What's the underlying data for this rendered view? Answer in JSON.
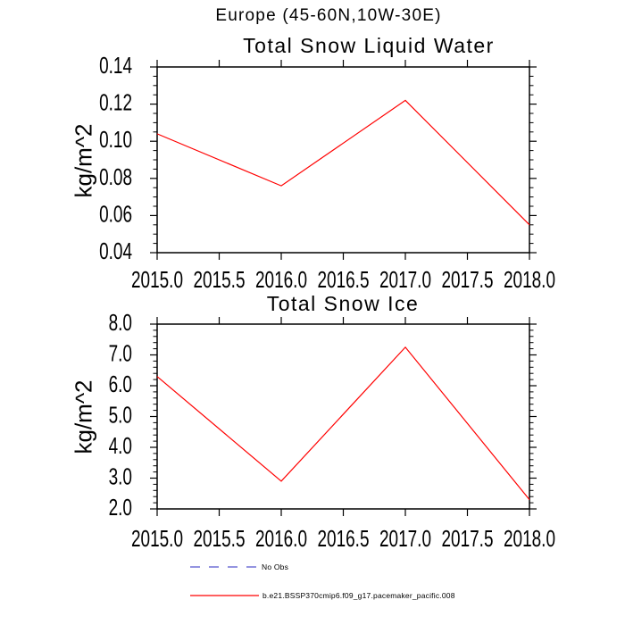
{
  "header": {
    "title": "Europe (45-60N,10W-30E)"
  },
  "chart_data": [
    {
      "type": "line",
      "title": "Total Snow Liquid Water",
      "xlabel": "",
      "ylabel": "kg/m^2",
      "xlim": [
        2015.0,
        2018.0
      ],
      "ylim": [
        0.04,
        0.14
      ],
      "xticks": [
        2015.0,
        2015.5,
        2016.0,
        2016.5,
        2017.0,
        2017.5,
        2018.0
      ],
      "xtick_labels": [
        "2015.0",
        "2015.5",
        "2016.0",
        "2016.5",
        "2017.0",
        "2017.5",
        "2018.0"
      ],
      "yticks": [
        0.04,
        0.06,
        0.08,
        0.1,
        0.12,
        0.14
      ],
      "ytick_labels": [
        "0.04",
        "0.06",
        "0.08",
        "0.10",
        "0.12",
        "0.14"
      ],
      "y_minor_step": 0.005,
      "grid": false,
      "series": [
        {
          "name": "b.e21.BSSP370cmip6.f09_g17.pacemaker_pacific.008",
          "color": "#ff0000",
          "x": [
            2015.0,
            2016.0,
            2017.0,
            2018.0
          ],
          "y": [
            0.104,
            0.076,
            0.122,
            0.055
          ]
        }
      ]
    },
    {
      "type": "line",
      "title": "Total Snow Ice",
      "xlabel": "",
      "ylabel": "kg/m^2",
      "xlim": [
        2015.0,
        2018.0
      ],
      "ylim": [
        2.0,
        8.0
      ],
      "xticks": [
        2015.0,
        2015.5,
        2016.0,
        2016.5,
        2017.0,
        2017.5,
        2018.0
      ],
      "xtick_labels": [
        "2015.0",
        "2015.5",
        "2016.0",
        "2016.5",
        "2017.0",
        "2017.5",
        "2018.0"
      ],
      "yticks": [
        2.0,
        3.0,
        4.0,
        5.0,
        6.0,
        7.0,
        8.0
      ],
      "ytick_labels": [
        "2.0",
        "3.0",
        "4.0",
        "5.0",
        "6.0",
        "7.0",
        "8.0"
      ],
      "y_minor_step": 0.2,
      "grid": false,
      "series": [
        {
          "name": "b.e21.BSSP370cmip6.f09_g17.pacemaker_pacific.008",
          "color": "#ff0000",
          "x": [
            2015.0,
            2016.0,
            2017.0,
            2018.0
          ],
          "y": [
            6.3,
            2.9,
            7.25,
            2.3
          ]
        }
      ]
    }
  ],
  "legend": {
    "items": [
      {
        "label": "No Obs",
        "color": "#5353cd",
        "style": "dashed"
      },
      {
        "label": "b.e21.BSSP370cmip6.f09_g17.pacemaker_pacific.008",
        "color": "#ff0000",
        "style": "solid"
      }
    ]
  },
  "colors": {
    "axis": "#000000",
    "background": "#ffffff"
  }
}
